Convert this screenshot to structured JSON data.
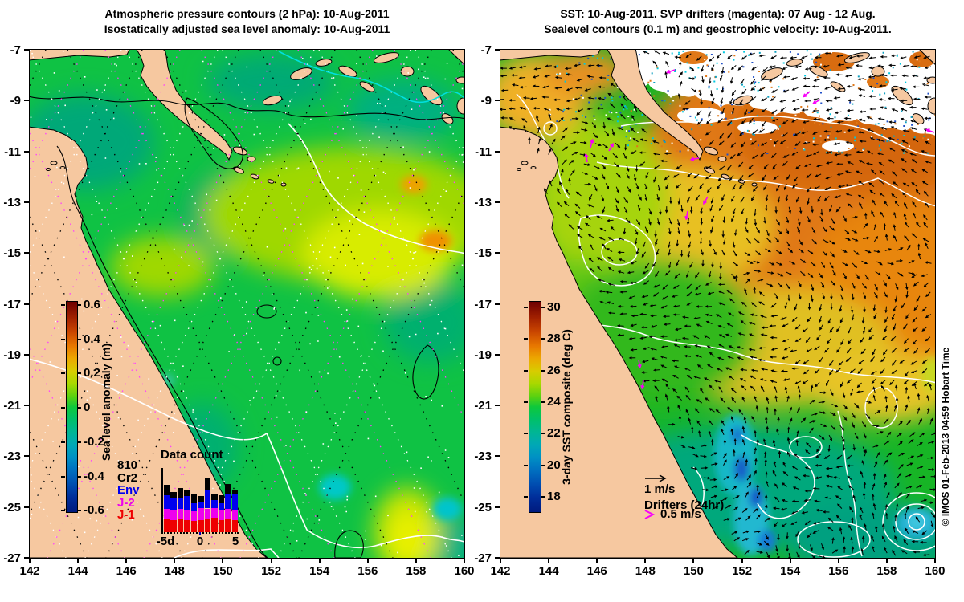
{
  "figure": {
    "watermark": "© IMOS 01-Feb-2013 04:59 Hobart Time"
  },
  "axes": {
    "x_tick_labels": [
      "142",
      "144",
      "146",
      "148",
      "150",
      "152",
      "154",
      "156",
      "158",
      "160"
    ],
    "y_tick_labels": [
      "-7",
      "-9",
      "-11",
      "-13",
      "-15",
      "-17",
      "-19",
      "-21",
      "-23",
      "-25",
      "-27"
    ]
  },
  "left_panel": {
    "title_line1": "Atmospheric pressure contours (2 hPa): 10-Aug-2011",
    "title_line2": "Isostatically adjusted sea level anomaly: 10-Aug-2011",
    "colorbar": {
      "title": "Sea level anomaly (m)",
      "tick_labels": [
        "0.6",
        "0.4",
        "0.2",
        "0",
        "-0.2",
        "-0.4",
        "-0.6"
      ]
    },
    "satellite_legend": [
      {
        "label": "810",
        "color": "#000000"
      },
      {
        "label": "Cr2",
        "color": "#000000"
      },
      {
        "label": "Env",
        "color": "#0000ee"
      },
      {
        "label": "J-2",
        "color": "#ee00ee"
      },
      {
        "label": "J-1",
        "color": "#ee0000"
      }
    ],
    "histogram": {
      "title": "Data count",
      "x_axis_labels": [
        "-5d",
        "0",
        "5"
      ]
    }
  },
  "right_panel": {
    "title_line1": "SST: 10-Aug-2011. SVP drifters (magenta): 07 Aug - 12 Aug.",
    "title_line2": "Sealevel contours (0.1 m) and geostrophic velocity: 10-Aug-2011.",
    "colorbar": {
      "title": "3-day SST composite (deg C)",
      "tick_labels": [
        "30",
        "28",
        "26",
        "24",
        "22",
        "20",
        "18"
      ]
    },
    "vector_legend": {
      "arrow_label": "1 m/s",
      "drifters_label": "Drifters (24hr)",
      "drifter_arrow_label": "0.5 m/s"
    }
  },
  "chart_data": [
    {
      "type": "heatmap",
      "panel": "left",
      "title": "Atmospheric pressure contours (2 hPa): 10-Aug-2011 — Isostatically adjusted sea level anomaly: 10-Aug-2011",
      "x": {
        "ticks": [
          142,
          144,
          146,
          148,
          150,
          152,
          154,
          156,
          158,
          160
        ],
        "range": [
          142,
          160
        ],
        "unit": "deg E longitude"
      },
      "y": {
        "ticks": [
          -7,
          -9,
          -11,
          -13,
          -15,
          -17,
          -19,
          -21,
          -23,
          -25,
          -27
        ],
        "range": [
          -27,
          -7
        ],
        "unit": "deg latitude"
      },
      "colorbar": {
        "label": "Sea level anomaly (m)",
        "ticks": [
          0.6,
          0.4,
          0.2,
          0,
          -0.2,
          -0.4,
          -0.6
        ],
        "range": [
          -0.6,
          0.6
        ]
      },
      "overlays": [
        "atmospheric pressure contours every 2 hPa (black)",
        "satellite altimeter ground tracks (dotted white/black/magenta)",
        "coastline with land mask (tan)"
      ]
    },
    {
      "type": "heatmap",
      "panel": "right",
      "title": "SST: 10-Aug-2011. SVP drifters (magenta): 07 Aug - 12 Aug. Sealevel contours (0.1 m) and geostrophic velocity: 10-Aug-2011.",
      "x": {
        "ticks": [
          142,
          144,
          146,
          148,
          150,
          152,
          154,
          156,
          158,
          160
        ],
        "range": [
          142,
          160
        ],
        "unit": "deg E longitude"
      },
      "y": {
        "ticks": [
          -7,
          -9,
          -11,
          -13,
          -15,
          -17,
          -19,
          -21,
          -23,
          -25,
          -27
        ],
        "range": [
          -27,
          -7
        ],
        "unit": "deg latitude"
      },
      "colorbar": {
        "label": "3-day SST composite (deg C)",
        "ticks": [
          30,
          28,
          26,
          24,
          22,
          20,
          18
        ],
        "range": [
          17,
          31
        ]
      },
      "vector_scale": "1 m/s",
      "drifter_scale": "0.5 m/s",
      "overlays": [
        "sealevel contours every 0.1 m (white)",
        "geostrophic velocity arrows (black)",
        "SVP drifter vectors 24hr (magenta)",
        "cloud / no-data (white patches)"
      ]
    },
    {
      "type": "bar",
      "stacked": true,
      "title": "Data count",
      "total_label": "810",
      "categories": [
        -5,
        -4,
        -3,
        -2,
        -1,
        0,
        1,
        2,
        3,
        4,
        5
      ],
      "x_unit": "days relative to analysis date",
      "series": [
        {
          "name": "J-1",
          "color": "#ee0000",
          "values": [
            23,
            21,
            23,
            21,
            19,
            21,
            23,
            25,
            21,
            23,
            21
          ]
        },
        {
          "name": "J-2",
          "color": "#ee00ee",
          "values": [
            17,
            18,
            17,
            18,
            17,
            21,
            18,
            17,
            18,
            18,
            17
          ]
        },
        {
          "name": "Env",
          "color": "#0000ee",
          "values": [
            24,
            21,
            18,
            24,
            14,
            10,
            32,
            14,
            11,
            25,
            28
          ]
        },
        {
          "name": "Cr2",
          "color": "#000000",
          "values": [
            18,
            10,
            18,
            10,
            17,
            11,
            21,
            10,
            14,
            17,
            6
          ]
        }
      ],
      "legend_position": "left of plot",
      "grid": false
    }
  ]
}
